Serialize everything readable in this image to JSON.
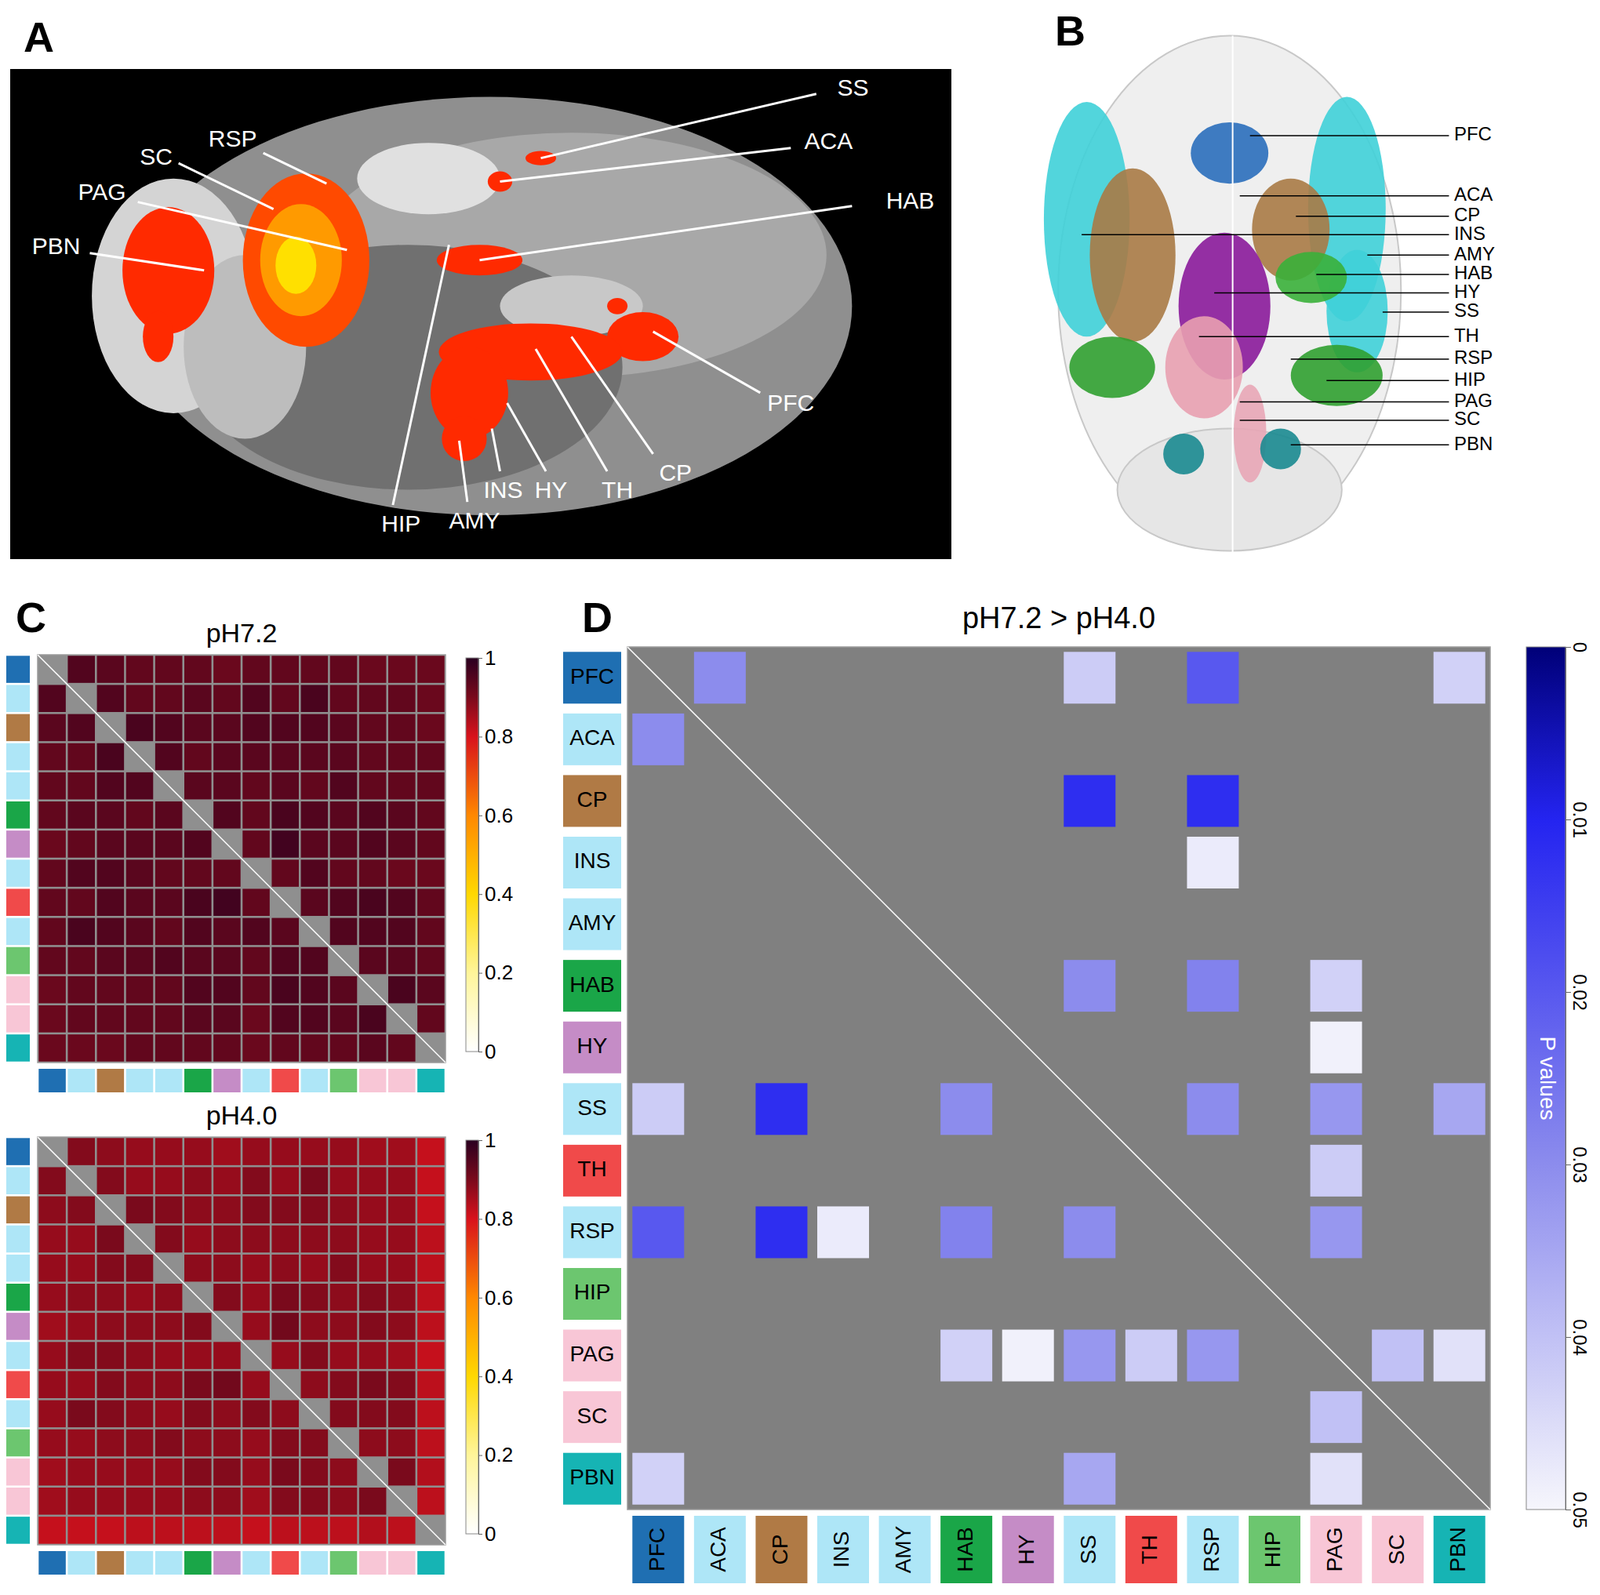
{
  "chart_data": [
    {
      "type": "brain_map",
      "panel": "A",
      "labels": [
        "SS",
        "ACA",
        "HAB",
        "PFC",
        "CP",
        "TH",
        "HY",
        "INS",
        "AMY",
        "HIP",
        "PBN",
        "PAG",
        "SC",
        "RSP"
      ]
    },
    {
      "type": "brain_render",
      "panel": "B",
      "labels": [
        "PFC",
        "ACA",
        "CP",
        "INS",
        "AMY",
        "HAB",
        "HY",
        "SS",
        "TH",
        "RSP",
        "HIP",
        "PAG",
        "SC",
        "PBN"
      ]
    },
    {
      "type": "heatmap",
      "panel": "C",
      "title": "pH7.2",
      "colors": [
        "#1f6fb2",
        "#aee6f7",
        "#b07a45",
        "#aee6f7",
        "#aee6f7",
        "#1aa648",
        "#c58cc6",
        "#aee6f7",
        "#f04a4a",
        "#aee6f7",
        "#6cc66f",
        "#f8c6d6",
        "#f8c6d6",
        "#16b4b4"
      ],
      "cells": [
        [
          null,
          0.95,
          0.94,
          0.93,
          0.93,
          0.93,
          0.92,
          0.93,
          0.93,
          0.93,
          0.93,
          0.92,
          0.92,
          0.92
        ],
        [
          0.95,
          null,
          0.95,
          0.93,
          0.93,
          0.94,
          0.93,
          0.95,
          0.93,
          0.96,
          0.93,
          0.93,
          0.93,
          0.92
        ],
        [
          0.94,
          0.95,
          null,
          0.96,
          0.95,
          0.94,
          0.94,
          0.95,
          0.95,
          0.95,
          0.94,
          0.93,
          0.93,
          0.92
        ],
        [
          0.93,
          0.93,
          0.96,
          null,
          0.95,
          0.93,
          0.94,
          0.94,
          0.94,
          0.94,
          0.94,
          0.93,
          0.93,
          0.93
        ],
        [
          0.93,
          0.93,
          0.95,
          0.95,
          null,
          0.94,
          0.94,
          0.93,
          0.94,
          0.93,
          0.95,
          0.93,
          0.93,
          0.93
        ],
        [
          0.93,
          0.94,
          0.94,
          0.93,
          0.94,
          null,
          0.95,
          0.93,
          0.96,
          0.95,
          0.94,
          0.95,
          0.94,
          0.93
        ],
        [
          0.92,
          0.93,
          0.94,
          0.94,
          0.94,
          0.95,
          null,
          0.93,
          0.97,
          0.94,
          0.94,
          0.95,
          0.94,
          0.93
        ],
        [
          0.93,
          0.95,
          0.95,
          0.94,
          0.93,
          0.93,
          0.93,
          null,
          0.93,
          0.95,
          0.93,
          0.93,
          0.92,
          0.92
        ],
        [
          0.93,
          0.93,
          0.95,
          0.94,
          0.94,
          0.96,
          0.97,
          0.93,
          null,
          0.94,
          0.95,
          0.96,
          0.95,
          0.93
        ],
        [
          0.93,
          0.96,
          0.95,
          0.94,
          0.93,
          0.95,
          0.94,
          0.95,
          0.94,
          null,
          0.95,
          0.95,
          0.95,
          0.93
        ],
        [
          0.93,
          0.93,
          0.94,
          0.94,
          0.95,
          0.94,
          0.94,
          0.93,
          0.95,
          0.95,
          null,
          0.94,
          0.94,
          0.93
        ],
        [
          0.92,
          0.93,
          0.93,
          0.93,
          0.93,
          0.95,
          0.95,
          0.93,
          0.96,
          0.95,
          0.94,
          null,
          0.96,
          0.94
        ],
        [
          0.92,
          0.93,
          0.93,
          0.93,
          0.93,
          0.94,
          0.94,
          0.92,
          0.95,
          0.95,
          0.94,
          0.96,
          null,
          0.93
        ],
        [
          0.92,
          0.92,
          0.92,
          0.93,
          0.93,
          0.93,
          0.93,
          0.92,
          0.93,
          0.93,
          0.93,
          0.94,
          0.93,
          null
        ]
      ],
      "colorbar": {
        "range": [
          0,
          1
        ],
        "ticks": [
          0,
          0.2,
          0.4,
          0.6,
          0.8,
          1
        ]
      }
    },
    {
      "type": "heatmap",
      "title": "pH4.0",
      "colors": [
        "#1f6fb2",
        "#aee6f7",
        "#b07a45",
        "#aee6f7",
        "#aee6f7",
        "#1aa648",
        "#c58cc6",
        "#aee6f7",
        "#f04a4a",
        "#aee6f7",
        "#6cc66f",
        "#f8c6d6",
        "#f8c6d6",
        "#16b4b4"
      ],
      "cells": [
        [
          null,
          0.89,
          0.88,
          0.87,
          0.87,
          0.87,
          0.86,
          0.87,
          0.87,
          0.87,
          0.87,
          0.86,
          0.86,
          0.82
        ],
        [
          0.89,
          null,
          0.89,
          0.87,
          0.87,
          0.88,
          0.87,
          0.89,
          0.87,
          0.9,
          0.87,
          0.87,
          0.87,
          0.82
        ],
        [
          0.88,
          0.89,
          null,
          0.9,
          0.89,
          0.88,
          0.88,
          0.89,
          0.89,
          0.89,
          0.88,
          0.87,
          0.87,
          0.82
        ],
        [
          0.87,
          0.87,
          0.9,
          null,
          0.89,
          0.87,
          0.88,
          0.88,
          0.88,
          0.88,
          0.88,
          0.87,
          0.87,
          0.83
        ],
        [
          0.87,
          0.87,
          0.89,
          0.89,
          null,
          0.88,
          0.88,
          0.87,
          0.88,
          0.87,
          0.89,
          0.87,
          0.87,
          0.83
        ],
        [
          0.87,
          0.88,
          0.88,
          0.87,
          0.88,
          null,
          0.89,
          0.87,
          0.9,
          0.89,
          0.88,
          0.89,
          0.88,
          0.83
        ],
        [
          0.86,
          0.87,
          0.88,
          0.88,
          0.88,
          0.89,
          null,
          0.87,
          0.91,
          0.88,
          0.88,
          0.89,
          0.88,
          0.83
        ],
        [
          0.87,
          0.89,
          0.89,
          0.88,
          0.87,
          0.87,
          0.87,
          null,
          0.87,
          0.89,
          0.87,
          0.87,
          0.86,
          0.82
        ],
        [
          0.87,
          0.87,
          0.89,
          0.88,
          0.88,
          0.9,
          0.91,
          0.87,
          null,
          0.88,
          0.89,
          0.9,
          0.89,
          0.83
        ],
        [
          0.87,
          0.9,
          0.89,
          0.88,
          0.87,
          0.89,
          0.88,
          0.89,
          0.88,
          null,
          0.89,
          0.89,
          0.89,
          0.83
        ],
        [
          0.87,
          0.87,
          0.88,
          0.88,
          0.89,
          0.88,
          0.88,
          0.87,
          0.89,
          0.89,
          null,
          0.88,
          0.88,
          0.83
        ],
        [
          0.86,
          0.87,
          0.87,
          0.87,
          0.87,
          0.89,
          0.89,
          0.87,
          0.9,
          0.89,
          0.88,
          null,
          0.9,
          0.84
        ],
        [
          0.86,
          0.87,
          0.87,
          0.87,
          0.87,
          0.88,
          0.88,
          0.86,
          0.89,
          0.89,
          0.88,
          0.9,
          null,
          0.83
        ],
        [
          0.82,
          0.82,
          0.82,
          0.83,
          0.83,
          0.83,
          0.83,
          0.82,
          0.83,
          0.83,
          0.83,
          0.84,
          0.83,
          null
        ]
      ],
      "colorbar": {
        "range": [
          0,
          1
        ],
        "ticks": [
          0,
          0.2,
          0.4,
          0.6,
          0.8,
          1
        ]
      }
    },
    {
      "type": "heatmap",
      "panel": "D",
      "title": "pH7.2 > pH4.0",
      "categories": [
        "PFC",
        "ACA",
        "CP",
        "INS",
        "AMY",
        "HAB",
        "HY",
        "SS",
        "TH",
        "RSP",
        "HIP",
        "PAG",
        "SC",
        "PBN"
      ],
      "colors": [
        "#1f6fb2",
        "#aee6f7",
        "#b07a45",
        "#aee6f7",
        "#aee6f7",
        "#1aa648",
        "#c58cc6",
        "#aee6f7",
        "#f04a4a",
        "#aee6f7",
        "#6cc66f",
        "#f8c6d6",
        "#f8c6d6",
        "#16b4b4"
      ],
      "cells": [
        [
          null,
          0.03,
          null,
          null,
          null,
          null,
          null,
          0.042,
          null,
          0.02,
          null,
          null,
          null,
          0.043
        ],
        [
          0.03,
          null,
          null,
          null,
          null,
          null,
          null,
          null,
          null,
          null,
          null,
          null,
          null,
          null
        ],
        [
          null,
          null,
          null,
          null,
          null,
          null,
          null,
          0.012,
          null,
          0.012,
          null,
          null,
          null,
          null
        ],
        [
          null,
          null,
          null,
          null,
          null,
          null,
          null,
          null,
          null,
          0.048,
          null,
          null,
          null,
          null
        ],
        [
          null,
          null,
          null,
          null,
          null,
          null,
          null,
          null,
          null,
          null,
          null,
          null,
          null,
          null
        ],
        [
          null,
          null,
          null,
          null,
          null,
          null,
          null,
          0.03,
          null,
          0.028,
          null,
          0.043,
          null,
          null
        ],
        [
          null,
          null,
          null,
          null,
          null,
          null,
          null,
          null,
          null,
          null,
          null,
          0.049,
          null,
          null
        ],
        [
          0.042,
          null,
          0.012,
          null,
          null,
          0.03,
          null,
          null,
          null,
          0.03,
          null,
          0.032,
          null,
          0.035
        ],
        [
          null,
          null,
          null,
          null,
          null,
          null,
          null,
          null,
          null,
          null,
          null,
          0.042,
          null,
          null
        ],
        [
          0.02,
          null,
          0.012,
          0.048,
          null,
          0.028,
          null,
          0.03,
          null,
          null,
          null,
          0.032,
          null,
          null
        ],
        [
          null,
          null,
          null,
          null,
          null,
          null,
          null,
          null,
          null,
          null,
          null,
          null,
          null,
          null
        ],
        [
          null,
          null,
          null,
          null,
          null,
          0.043,
          0.049,
          0.032,
          0.042,
          0.032,
          null,
          null,
          0.04,
          0.046
        ],
        [
          null,
          null,
          null,
          null,
          null,
          null,
          null,
          null,
          null,
          null,
          null,
          0.04,
          null,
          null
        ],
        [
          0.043,
          null,
          null,
          null,
          null,
          null,
          null,
          0.035,
          null,
          null,
          null,
          0.046,
          null,
          null
        ]
      ],
      "colorbar": {
        "range": [
          0,
          0.05
        ],
        "ticks": [
          0,
          0.01,
          0.02,
          0.03,
          0.04,
          0.05
        ],
        "label": "P values"
      }
    }
  ]
}
